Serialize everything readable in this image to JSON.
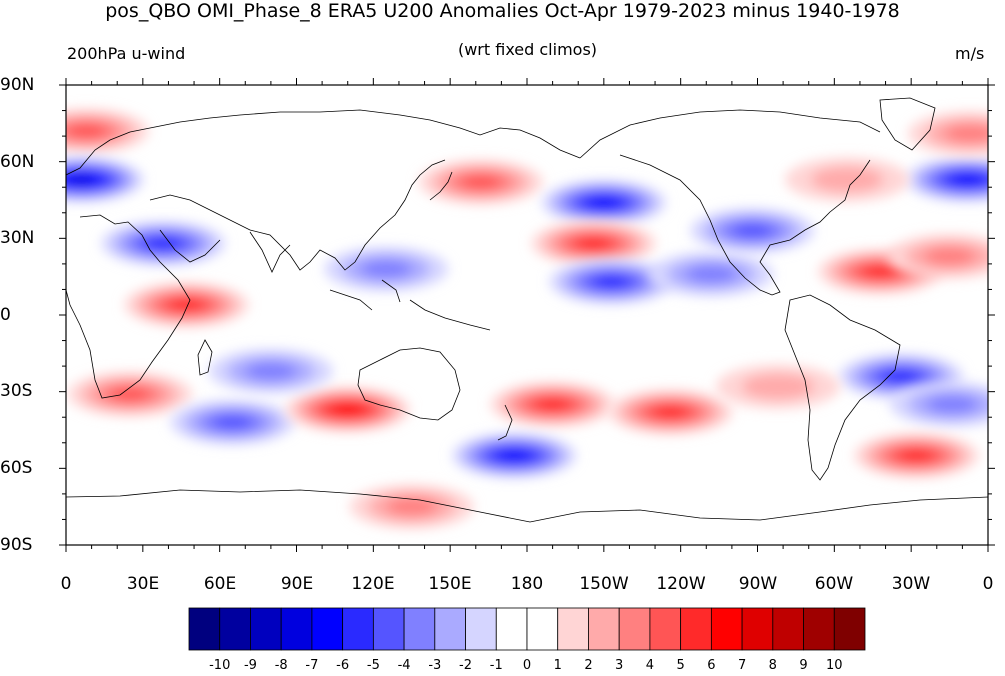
{
  "title": "pos_QBO OMI_Phase_8 ERA5 U200 Anomalies Oct-Apr 1979-2023 minus 1940-1978",
  "left_string": "200hPa u-wind",
  "center_string": "(wrt fixed climos)",
  "right_string": "m/s",
  "lat_labels": [
    "90N",
    "60N",
    "30N",
    "0",
    "30S",
    "60S",
    "90S"
  ],
  "lon_labels": [
    "0",
    "30E",
    "60E",
    "90E",
    "120E",
    "150E",
    "180",
    "150W",
    "120W",
    "90W",
    "60W",
    "30W",
    "0"
  ],
  "colorbar": {
    "labels": [
      "-10",
      "-9",
      "-8",
      "-7",
      "-6",
      "-5",
      "-4",
      "-3",
      "-2",
      "-1",
      "0",
      "1",
      "2",
      "3",
      "4",
      "5",
      "6",
      "7",
      "8",
      "9",
      "10"
    ],
    "colors": [
      "#00007f",
      "#00009f",
      "#0000bf",
      "#0000df",
      "#0000ff",
      "#2a2aff",
      "#5555ff",
      "#8080ff",
      "#aaaaff",
      "#d5d5ff",
      "#ffffff",
      "#ffffff",
      "#ffd5d5",
      "#ffaaaa",
      "#ff8080",
      "#ff5555",
      "#ff2a2a",
      "#ff0000",
      "#df0000",
      "#bf0000",
      "#9f0000",
      "#7f0000"
    ]
  },
  "anomaly_blobs": [
    {
      "lon": 8,
      "lat": 72,
      "v": 4
    },
    {
      "lon": 6,
      "lat": 53,
      "v": -7
    },
    {
      "lon": 352,
      "lat": 53,
      "v": -6
    },
    {
      "lon": 353,
      "lat": 71,
      "v": 3
    },
    {
      "lon": 38,
      "lat": 28,
      "v": -5
    },
    {
      "lon": 47,
      "lat": 4,
      "v": 5
    },
    {
      "lon": 25,
      "lat": -31,
      "v": 4
    },
    {
      "lon": 65,
      "lat": -42,
      "v": -4
    },
    {
      "lon": 110,
      "lat": -37,
      "v": 6
    },
    {
      "lon": 162,
      "lat": 52,
      "v": 4
    },
    {
      "lon": 210,
      "lat": 44,
      "v": -6
    },
    {
      "lon": 206,
      "lat": 28,
      "v": 5
    },
    {
      "lon": 213,
      "lat": 13,
      "v": -5
    },
    {
      "lon": 252,
      "lat": 16,
      "v": -3
    },
    {
      "lon": 268,
      "lat": 33,
      "v": -4
    },
    {
      "lon": 305,
      "lat": 53,
      "v": 2
    },
    {
      "lon": 318,
      "lat": 17,
      "v": 5
    },
    {
      "lon": 345,
      "lat": 23,
      "v": 3
    },
    {
      "lon": 190,
      "lat": -35,
      "v": 5
    },
    {
      "lon": 236,
      "lat": -38,
      "v": 5
    },
    {
      "lon": 175,
      "lat": -55,
      "v": -6
    },
    {
      "lon": 326,
      "lat": -24,
      "v": -5
    },
    {
      "lon": 346,
      "lat": -35,
      "v": -3
    },
    {
      "lon": 332,
      "lat": -55,
      "v": 5
    },
    {
      "lon": 135,
      "lat": -75,
      "v": 3
    },
    {
      "lon": 80,
      "lat": -22,
      "v": -3
    },
    {
      "lon": 125,
      "lat": 18,
      "v": -3
    },
    {
      "lon": 278,
      "lat": -28,
      "v": 2
    }
  ]
}
